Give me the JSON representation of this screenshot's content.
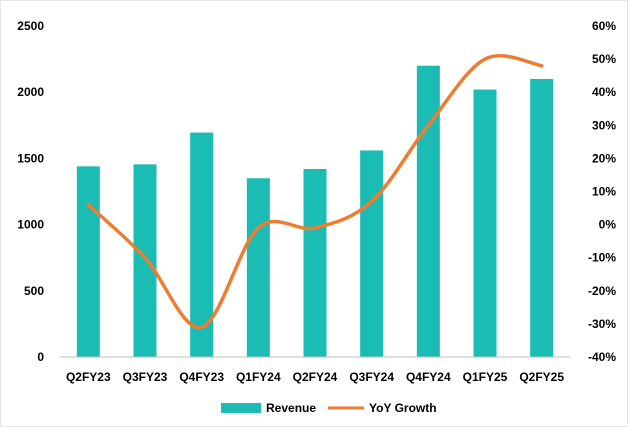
{
  "chart_data": {
    "type": "bar",
    "title": "",
    "xlabel": "",
    "ylabel": "",
    "categories": [
      "Q2FY23",
      "Q3FY23",
      "Q4FY23",
      "Q1FY24",
      "Q2FY24",
      "Q3FY24",
      "Q4FY24",
      "Q1FY25",
      "Q2FY25"
    ],
    "series": [
      {
        "name": "Revenue",
        "type": "bar",
        "axis": "left",
        "color": "#1BBCB4",
        "values": [
          1440,
          1455,
          1695,
          1350,
          1420,
          1560,
          2200,
          2020,
          2100
        ]
      },
      {
        "name": "YoY Growth",
        "type": "line",
        "axis": "right",
        "color": "#ED7D31",
        "values": [
          6,
          -10,
          -31,
          -1,
          -1,
          7,
          30,
          50,
          48
        ]
      }
    ],
    "ylim": [
      0,
      2500
    ],
    "y_ticks": [
      "0",
      "500",
      "1000",
      "1500",
      "2000",
      "2500"
    ],
    "y2lim": [
      -40,
      60
    ],
    "y2_ticks": [
      "-40%",
      "-30%",
      "-20%",
      "-10%",
      "0%",
      "10%",
      "20%",
      "30%",
      "40%",
      "50%",
      "60%"
    ],
    "grid": false,
    "legend": {
      "position": "bottom",
      "labels": [
        "Revenue",
        "YoY Growth"
      ]
    }
  }
}
